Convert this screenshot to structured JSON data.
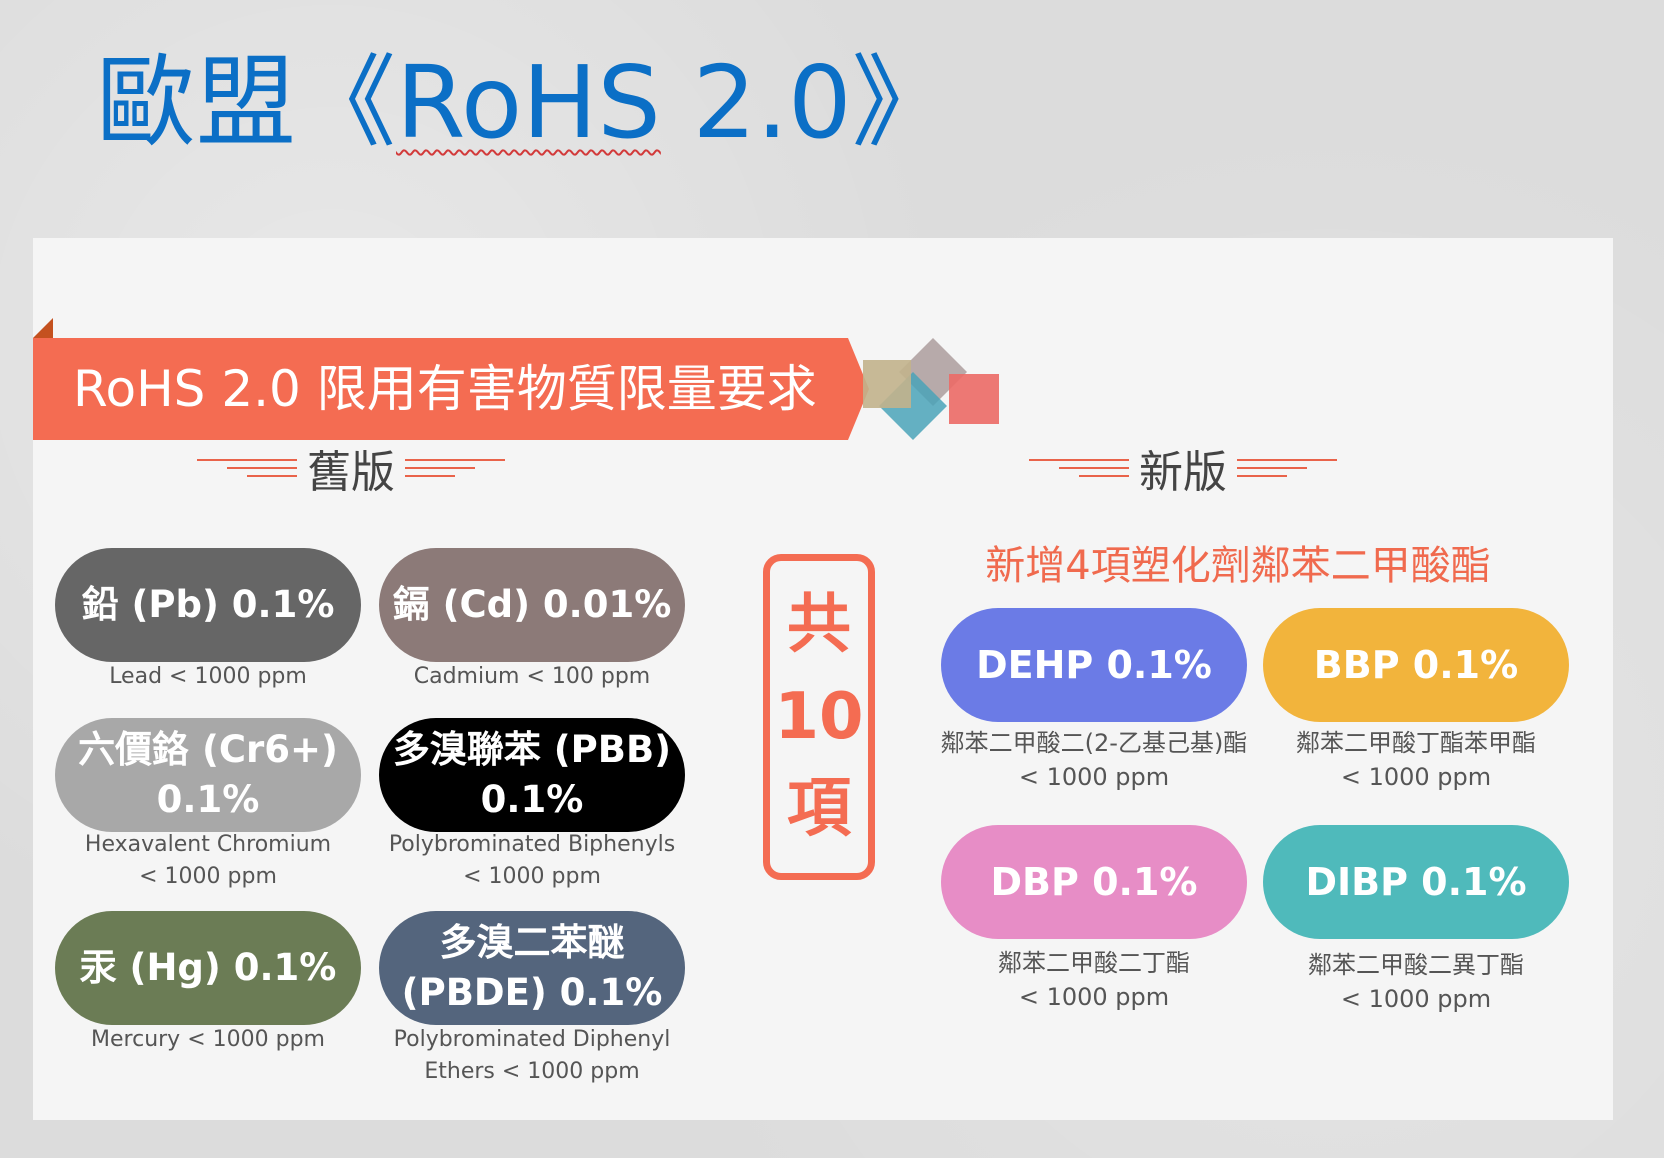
{
  "title": {
    "prefix": "歐盟《",
    "rohs": "RoHS",
    "suffix": " 2.0》"
  },
  "banner": {
    "text": "RoHS 2.0 限用有害物質限量要求"
  },
  "old_section": {
    "title": "舊版"
  },
  "new_section": {
    "title": "新版",
    "subtitle": "新增4項塑化劑鄰苯二甲酸酯"
  },
  "total": {
    "line1": "共",
    "line2": "10",
    "line3": "項"
  },
  "old_items": [
    {
      "label_lines": [
        "鉛 (Pb) 0.1%"
      ],
      "caption_lines": [
        "Lead < 1000 ppm"
      ],
      "color": "#666666"
    },
    {
      "label_lines": [
        "鎘 (Cd) 0.01%"
      ],
      "caption_lines": [
        "Cadmium < 100 ppm"
      ],
      "color": "#8c7a78"
    },
    {
      "label_lines": [
        "六價鉻 (Cr6+)",
        "0.1%"
      ],
      "caption_lines": [
        "Hexavalent Chromium",
        "< 1000 ppm"
      ],
      "color": "#a8a8a8"
    },
    {
      "label_lines": [
        "多溴聯苯 (PBB)",
        "0.1%"
      ],
      "caption_lines": [
        "Polybrominated Biphenyls",
        "< 1000 ppm"
      ],
      "color": "#000000"
    },
    {
      "label_lines": [
        "汞 (Hg) 0.1%"
      ],
      "caption_lines": [
        "Mercury < 1000 ppm"
      ],
      "color": "#6b7c55"
    },
    {
      "label_lines": [
        "多溴二苯醚",
        "(PBDE) 0.1%"
      ],
      "caption_lines": [
        "Polybrominated Diphenyl",
        "Ethers < 1000 ppm"
      ],
      "color": "#54657d"
    }
  ],
  "new_items": [
    {
      "label": "DEHP 0.1%",
      "caption_lines": [
        "鄰苯二甲酸二(2-乙基己基)酯",
        "< 1000 ppm"
      ],
      "color": "#6b7be6"
    },
    {
      "label": "BBP 0.1%",
      "caption_lines": [
        "鄰苯二甲酸丁酯苯甲酯",
        "< 1000 ppm"
      ],
      "color": "#f2b43c"
    },
    {
      "label": "DBP 0.1%",
      "caption_lines": [
        "鄰苯二甲酸二丁酯",
        "< 1000 ppm"
      ],
      "color": "#e78dc6"
    },
    {
      "label": "DIBP 0.1%",
      "caption_lines": [
        "鄰苯二甲酸二異丁酯",
        "< 1000 ppm"
      ],
      "color": "#4fbabb"
    }
  ]
}
